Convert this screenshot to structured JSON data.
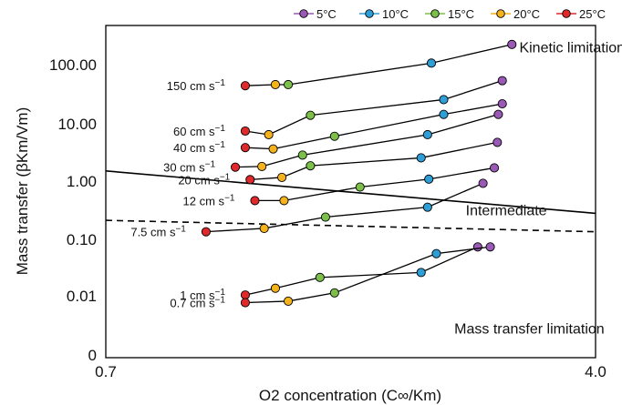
{
  "chart_data": {
    "type": "scatter",
    "title": "",
    "xlabel": "O2 concentration (C∞/Km)",
    "ylabel": "Mass transfer (βKm/Vm)",
    "xscale": "log",
    "yscale": "log",
    "xlim": [
      0.7,
      4.0
    ],
    "x_ticks": [
      "0.7",
      "4.0"
    ],
    "y_ticks": [
      "0",
      "0.01",
      "0.10",
      "1.00",
      "10.00",
      "100.00"
    ],
    "legend_position": "top-right",
    "grid": false,
    "legend": [
      {
        "name": "5°C",
        "color": "#9b59b6"
      },
      {
        "name": "10°C",
        "color": "#2e9fd6"
      },
      {
        "name": "15°C",
        "color": "#7cc04a"
      },
      {
        "name": "20°C",
        "color": "#f4b21c"
      },
      {
        "name": "25°C",
        "color": "#e0292b"
      }
    ],
    "series": [
      {
        "label": "150 cm s⁻¹",
        "points": [
          {
            "x": 1.15,
            "y": 45,
            "temp": "25°C"
          },
          {
            "x": 1.28,
            "y": 47,
            "temp": "20°C"
          },
          {
            "x": 1.34,
            "y": 47,
            "temp": "15°C"
          },
          {
            "x": 2.23,
            "y": 110,
            "temp": "10°C"
          },
          {
            "x": 2.97,
            "y": 230,
            "temp": "5°C"
          }
        ]
      },
      {
        "label": "60 cm s⁻¹",
        "points": [
          {
            "x": 1.15,
            "y": 7.5,
            "temp": "25°C"
          },
          {
            "x": 1.25,
            "y": 6.5,
            "temp": "20°C"
          },
          {
            "x": 1.45,
            "y": 14,
            "temp": "15°C"
          },
          {
            "x": 2.33,
            "y": 26,
            "temp": "10°C"
          },
          {
            "x": 2.87,
            "y": 55,
            "temp": "5°C"
          }
        ]
      },
      {
        "label": "40 cm s⁻¹",
        "points": [
          {
            "x": 1.15,
            "y": 3.9,
            "temp": "25°C"
          },
          {
            "x": 1.27,
            "y": 3.7,
            "temp": "20°C"
          },
          {
            "x": 1.58,
            "y": 6.1,
            "temp": "15°C"
          },
          {
            "x": 2.33,
            "y": 14.5,
            "temp": "10°C"
          },
          {
            "x": 2.87,
            "y": 22,
            "temp": "5°C"
          }
        ]
      },
      {
        "label": "30 cm s⁻¹",
        "points": [
          {
            "x": 1.11,
            "y": 1.8,
            "temp": "25°C"
          },
          {
            "x": 1.22,
            "y": 1.85,
            "temp": "20°C"
          },
          {
            "x": 1.41,
            "y": 2.9,
            "temp": "15°C"
          },
          {
            "x": 2.2,
            "y": 6.5,
            "temp": "10°C"
          },
          {
            "x": 2.83,
            "y": 14.5,
            "temp": "5°C"
          }
        ]
      },
      {
        "label": "20 cm s⁻¹",
        "points": [
          {
            "x": 1.17,
            "y": 1.1,
            "temp": "25°C"
          },
          {
            "x": 1.31,
            "y": 1.2,
            "temp": "20°C"
          },
          {
            "x": 1.45,
            "y": 1.9,
            "temp": "15°C"
          },
          {
            "x": 2.15,
            "y": 2.6,
            "temp": "10°C"
          },
          {
            "x": 2.82,
            "y": 4.8,
            "temp": "5°C"
          }
        ]
      },
      {
        "label": "12 cm s⁻¹",
        "points": [
          {
            "x": 1.19,
            "y": 0.48,
            "temp": "25°C"
          },
          {
            "x": 1.32,
            "y": 0.48,
            "temp": "20°C"
          },
          {
            "x": 1.73,
            "y": 0.82,
            "temp": "15°C"
          },
          {
            "x": 2.21,
            "y": 1.12,
            "temp": "10°C"
          },
          {
            "x": 2.79,
            "y": 1.75,
            "temp": "5°C"
          }
        ]
      },
      {
        "label": "7.5 cm s⁻¹",
        "points": [
          {
            "x": 1.0,
            "y": 0.14,
            "temp": "25°C"
          },
          {
            "x": 1.23,
            "y": 0.16,
            "temp": "20°C"
          },
          {
            "x": 1.53,
            "y": 0.25,
            "temp": "15°C"
          },
          {
            "x": 2.2,
            "y": 0.37,
            "temp": "10°C"
          },
          {
            "x": 2.68,
            "y": 0.95,
            "temp": "5°C"
          }
        ]
      },
      {
        "label": "1 cm s⁻¹",
        "points": [
          {
            "x": 1.15,
            "y": 0.0115,
            "temp": "25°C"
          },
          {
            "x": 1.28,
            "y": 0.015,
            "temp": "20°C"
          },
          {
            "x": 1.5,
            "y": 0.023,
            "temp": "15°C"
          },
          {
            "x": 2.15,
            "y": 0.028,
            "temp": "10°C"
          },
          {
            "x": 2.63,
            "y": 0.077,
            "temp": "5°C"
          }
        ]
      },
      {
        "label": "0.7 cm s⁻¹",
        "points": [
          {
            "x": 1.15,
            "y": 0.0085,
            "temp": "25°C"
          },
          {
            "x": 1.34,
            "y": 0.009,
            "temp": "20°C"
          },
          {
            "x": 1.58,
            "y": 0.0125,
            "temp": "15°C"
          },
          {
            "x": 2.27,
            "y": 0.059,
            "temp": "10°C"
          },
          {
            "x": 2.75,
            "y": 0.077,
            "temp": "5°C"
          }
        ]
      }
    ],
    "boundaries": [
      {
        "name": "solid",
        "style": "solid",
        "points": [
          {
            "x": 0.7,
            "y": 1.55
          },
          {
            "x": 4.0,
            "y": 0.29
          }
        ]
      },
      {
        "name": "dashed",
        "style": "dashed",
        "points": [
          {
            "x": 0.7,
            "y": 0.22
          },
          {
            "x": 4.0,
            "y": 0.14
          }
        ]
      }
    ],
    "regions": [
      {
        "label": "Kinetic limitation",
        "x": 3.05,
        "y": 170
      },
      {
        "label": "Intermediate",
        "x": 2.52,
        "y": 0.27
      },
      {
        "label": "Mass transfer limitation",
        "x": 2.42,
        "y": 0.0025
      }
    ]
  }
}
